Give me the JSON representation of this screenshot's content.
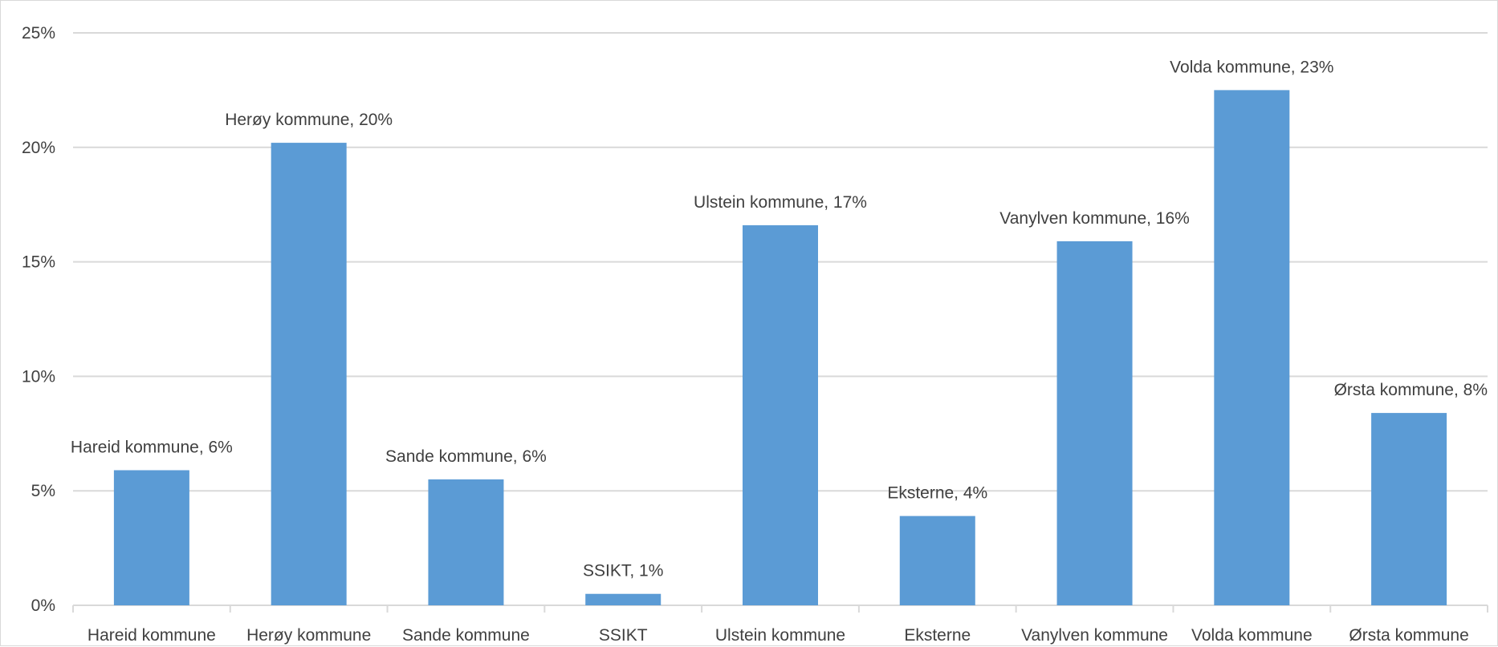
{
  "chart_data": {
    "type": "bar",
    "title": "",
    "xlabel": "",
    "ylabel": "",
    "categories": [
      "Hareid kommune",
      "Herøy kommune",
      "Sande kommune",
      "SSIKT",
      "Ulstein kommune",
      "Eksterne",
      "Vanylven kommune",
      "Volda kommune",
      "Ørsta kommune"
    ],
    "values": [
      5.9,
      20.2,
      5.5,
      0.5,
      16.6,
      3.9,
      15.9,
      22.5,
      8.4
    ],
    "data_labels": [
      "Hareid kommune, 6%",
      "Herøy kommune, 20%",
      "Sande kommune, 6%",
      "SSIKT, 1%",
      "Ulstein kommune, 17%",
      "Eksterne, 4%",
      "Vanylven kommune, 16%",
      "Volda kommune, 23%",
      "Ørsta kommune, 8%"
    ],
    "ylim": [
      0,
      25
    ],
    "y_ticks": [
      0,
      5,
      10,
      15,
      20,
      25
    ],
    "y_tick_labels": [
      "0%",
      "5%",
      "10%",
      "15%",
      "20%",
      "25%"
    ],
    "grid": true,
    "legend": "none",
    "colors": {
      "bar": "#5b9bd5",
      "grid": "#d9d9d9",
      "axis": "#d9d9d9",
      "text": "#404040"
    }
  }
}
